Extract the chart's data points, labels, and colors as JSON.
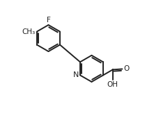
{
  "bg_color": "#ffffff",
  "line_color": "#222222",
  "line_width": 1.4,
  "font_size": 7.5,
  "xlim": [
    0,
    10
  ],
  "ylim": [
    0,
    9
  ],
  "figsize": [
    2.21,
    1.73
  ],
  "dpi": 100
}
